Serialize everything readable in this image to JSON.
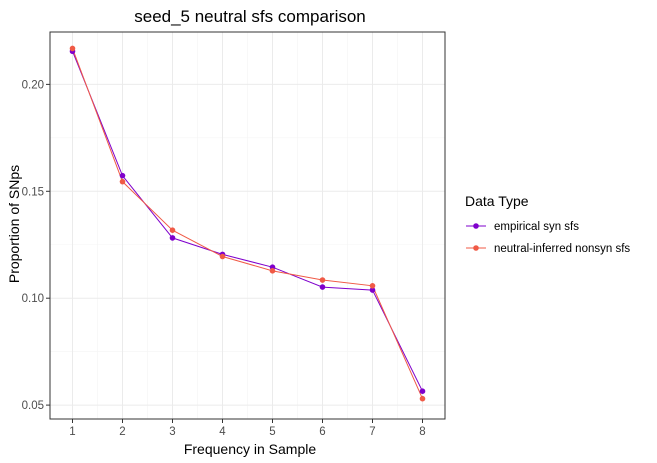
{
  "chart_data": {
    "type": "line",
    "title": "seed_5 neutral sfs comparison",
    "xlabel": "Frequency in Sample",
    "ylabel": "Proportion of SNps",
    "x": [
      1,
      2,
      3,
      4,
      5,
      6,
      7,
      8
    ],
    "xlim": [
      0.55,
      8.45
    ],
    "ylim": [
      0.0435,
      0.2245
    ],
    "x_ticks": [
      1,
      2,
      3,
      4,
      5,
      6,
      7,
      8
    ],
    "y_ticks": [
      0.05,
      0.1,
      0.15,
      0.2
    ],
    "y_tick_labels": [
      "0.05",
      "0.10",
      "0.15",
      "0.20"
    ],
    "grid": true,
    "legend": {
      "title": "Data Type",
      "placement": "right"
    },
    "series": [
      {
        "name": "empirical syn sfs",
        "color": "#7f00cc",
        "values": [
          0.2155,
          0.1573,
          0.1282,
          0.1205,
          0.1145,
          0.1052,
          0.1038,
          0.0565
        ]
      },
      {
        "name": "neutral-inferred nonsyn sfs",
        "color": "#f05a46",
        "values": [
          0.2168,
          0.1545,
          0.1318,
          0.1195,
          0.1128,
          0.1085,
          0.1058,
          0.053
        ]
      }
    ]
  }
}
